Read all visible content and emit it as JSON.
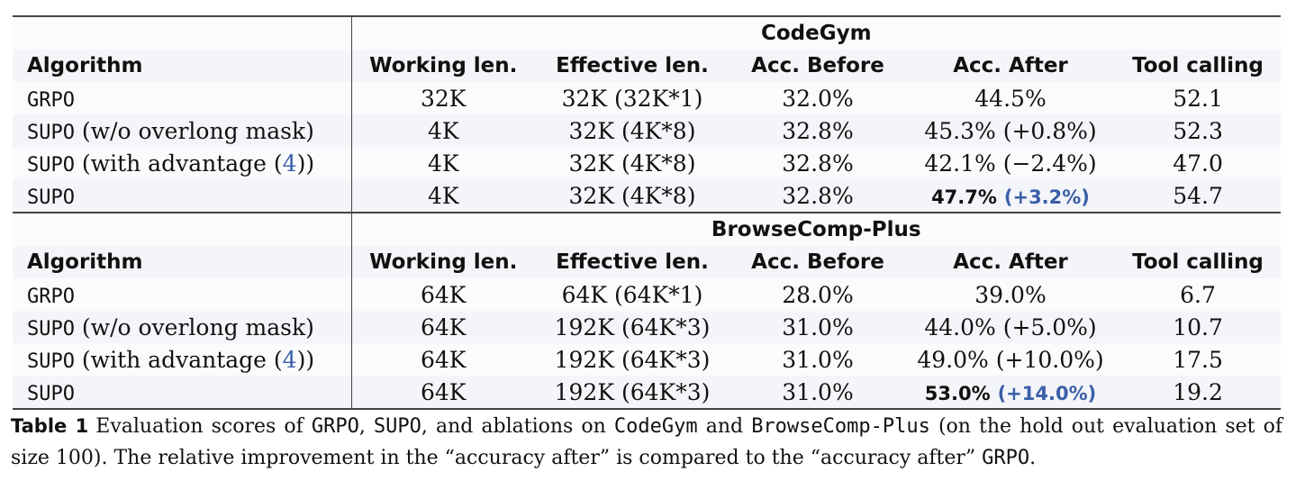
{
  "header": {
    "algorithm": "Algorithm",
    "working": "Working len.",
    "effective": "Effective len.",
    "before": "Acc. Before",
    "after": "Acc. After",
    "tool": "Tool calling"
  },
  "sections": [
    {
      "title": "CodeGym",
      "rows": [
        {
          "alg": "GRPO",
          "suffix": "",
          "working": "32K",
          "effective": "32K (32K*1)",
          "before": "32.0%",
          "after": "44.5%",
          "delta": "",
          "tool": "52.1"
        },
        {
          "alg": "SUPO",
          "suffix": " (w/o overlong mask)",
          "working": "4K",
          "effective": "32K (4K*8)",
          "before": "32.8%",
          "after": "45.3%",
          "delta": " (+0.8%)",
          "tool": "52.3"
        },
        {
          "alg": "SUPO",
          "suffix": " (with advantage (",
          "ref": "4",
          "suffix2": "))",
          "working": "4K",
          "effective": "32K (4K*8)",
          "before": "32.8%",
          "after": "42.1%",
          "delta": " (−2.4%)",
          "tool": "47.0"
        },
        {
          "alg": "SUPO",
          "suffix": "",
          "working": "4K",
          "effective": "32K (4K*8)",
          "before": "32.8%",
          "after": "47.7%",
          "delta": "(+3.2%)",
          "tool": "54.7"
        }
      ]
    },
    {
      "title": "BrowseComp-Plus",
      "rows": [
        {
          "alg": "GRPO",
          "suffix": "",
          "working": "64K",
          "effective": "64K (64K*1)",
          "before": "28.0%",
          "after": "39.0%",
          "delta": "",
          "tool": "6.7"
        },
        {
          "alg": "SUPO",
          "suffix": " (w/o overlong mask)",
          "working": "64K",
          "effective": "192K (64K*3)",
          "before": "31.0%",
          "after": "44.0%",
          "delta": " (+5.0%)",
          "tool": "10.7"
        },
        {
          "alg": "SUPO",
          "suffix": " (with advantage (",
          "ref": "4",
          "suffix2": "))",
          "working": "64K",
          "effective": "192K (64K*3)",
          "before": "31.0%",
          "after": "49.0%",
          "delta": " (+10.0%)",
          "tool": "17.5"
        },
        {
          "alg": "SUPO",
          "suffix": "",
          "working": "64K",
          "effective": "192K (64K*3)",
          "before": "31.0%",
          "after": "53.0%",
          "delta": "(+14.0%)",
          "tool": "19.2"
        }
      ]
    }
  ],
  "caption": {
    "label": "Table 1",
    "t1": "Evaluation scores of ",
    "m1": "GRPO",
    "t2": ", ",
    "m2": "SUPO",
    "t3": ", and ablations on ",
    "m3": "CodeGym",
    "t4": " and ",
    "m4": "BrowseComp-Plus",
    "t5": " (on the hold out evaluation set of size 100). The relative improvement in the “accuracy after” is compared to the “accuracy after” ",
    "m5": "GRPO",
    "t6": "."
  }
}
